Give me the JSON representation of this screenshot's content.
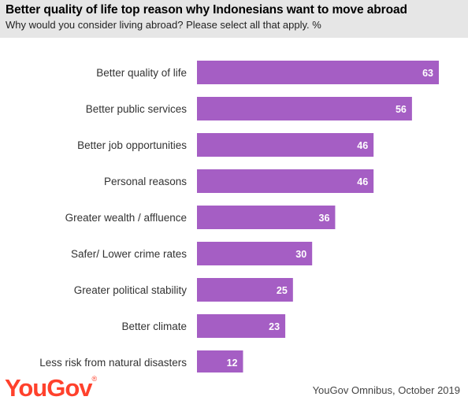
{
  "header": {
    "title": "Better quality of life top reason why Indonesians want to move abroad",
    "subtitle": "Why would you consider living abroad? Please select all that apply. %"
  },
  "footer": {
    "logo": "YouGov",
    "logo_mark": "®",
    "source": "YouGov Omnibus, October 2019"
  },
  "colors": {
    "bar": "#a55ec4",
    "header_bg": "#e6e6e6",
    "logo": "#ff412c"
  },
  "chart_data": {
    "type": "bar",
    "orientation": "horizontal",
    "title": "Better quality of life top reason why Indonesians want to move abroad",
    "subtitle": "Why would you consider living abroad? Please select all that apply. %",
    "categories": [
      "Better quality of life",
      "Better public services",
      "Better job opportunities",
      "Personal reasons",
      "Greater wealth / affluence",
      "Safer/ Lower crime rates",
      "Greater political stability",
      "Better climate",
      "Less risk from natural disasters"
    ],
    "values": [
      63,
      56,
      46,
      46,
      36,
      30,
      25,
      23,
      12
    ],
    "xlim": [
      0,
      63
    ],
    "grid": false,
    "legend": "none",
    "data_labels": "inside-end"
  }
}
